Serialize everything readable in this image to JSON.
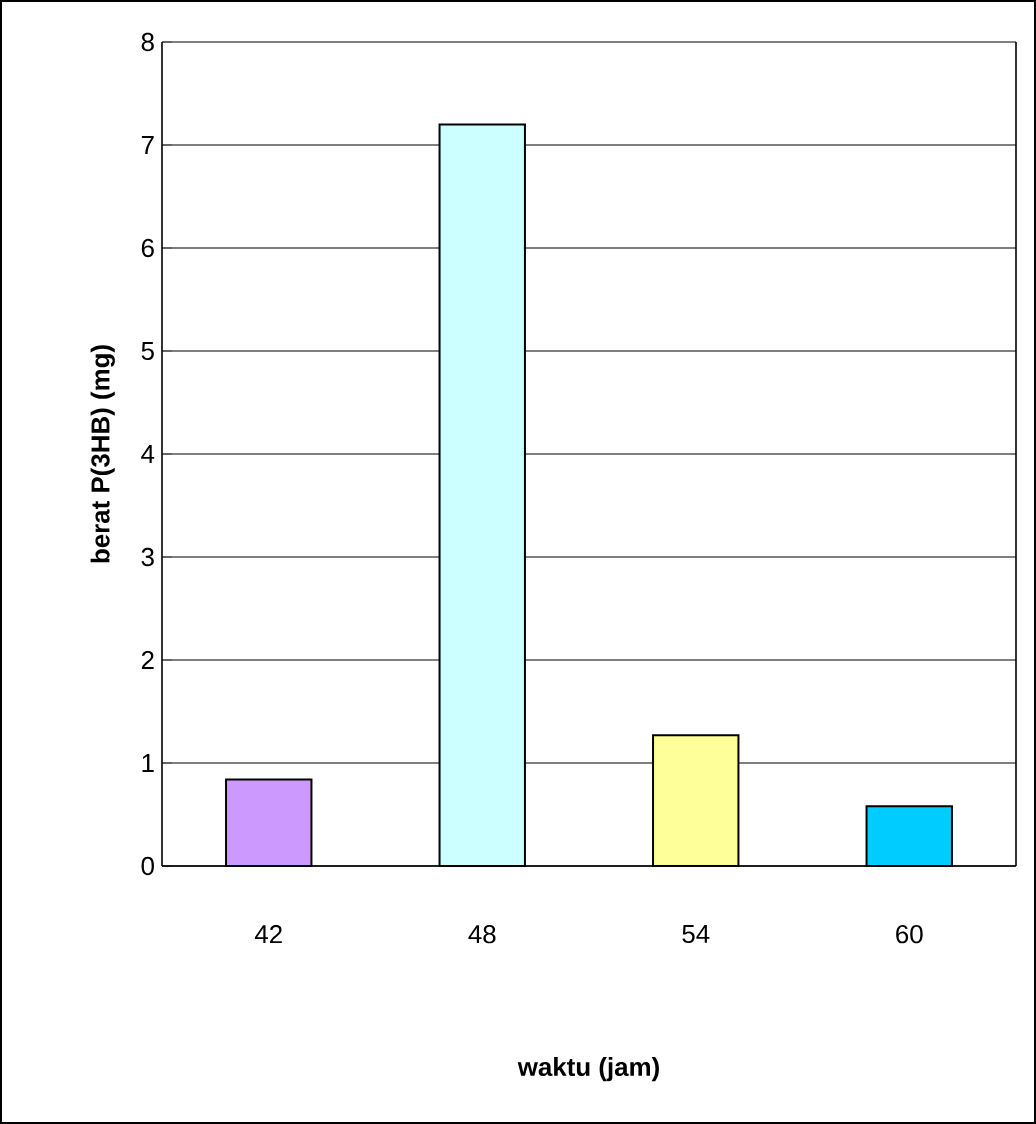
{
  "chart_data": {
    "type": "bar",
    "xlabel": "waktu (jam)",
    "ylabel": "berat P(3HB) (mg)",
    "categories": [
      "42",
      "48",
      "54",
      "60"
    ],
    "values": [
      0.84,
      7.2,
      1.27,
      0.58
    ],
    "colors": [
      "#cc99ff",
      "#ccffff",
      "#ffff99",
      "#00ccff"
    ],
    "ylim": [
      0,
      8
    ],
    "yticks": [
      0,
      1,
      2,
      3,
      4,
      5,
      6,
      7,
      8
    ],
    "grid": "y"
  }
}
